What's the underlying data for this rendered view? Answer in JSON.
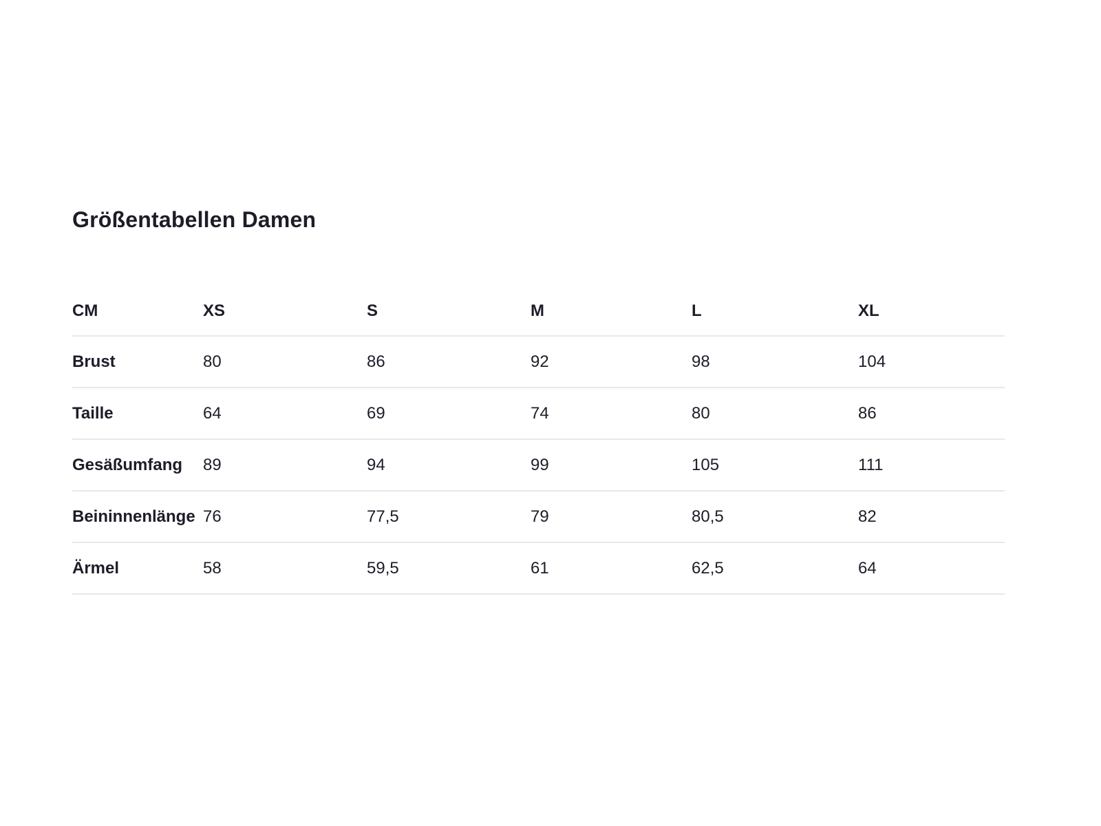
{
  "page": {
    "title": "Größentabellen Damen"
  },
  "table": {
    "unit_header": "CM",
    "columns": [
      "XS",
      "S",
      "M",
      "L",
      "XL"
    ],
    "rows": [
      {
        "label": "Brust",
        "values": [
          "80",
          "86",
          "92",
          "98",
          "104"
        ]
      },
      {
        "label": "Taille",
        "values": [
          "64",
          "69",
          "74",
          "80",
          "86"
        ]
      },
      {
        "label": "Gesäßumfang",
        "values": [
          "89",
          "94",
          "99",
          "105",
          "111"
        ]
      },
      {
        "label": "Beininnenlänge",
        "values": [
          "76",
          "77,5",
          "79",
          "80,5",
          "82"
        ]
      },
      {
        "label": "Ärmel",
        "values": [
          "58",
          "59,5",
          "61",
          "62,5",
          "64"
        ]
      }
    ]
  },
  "colors": {
    "text": "#1d1d29",
    "divider": "#e8e8e8",
    "background": "#ffffff"
  }
}
